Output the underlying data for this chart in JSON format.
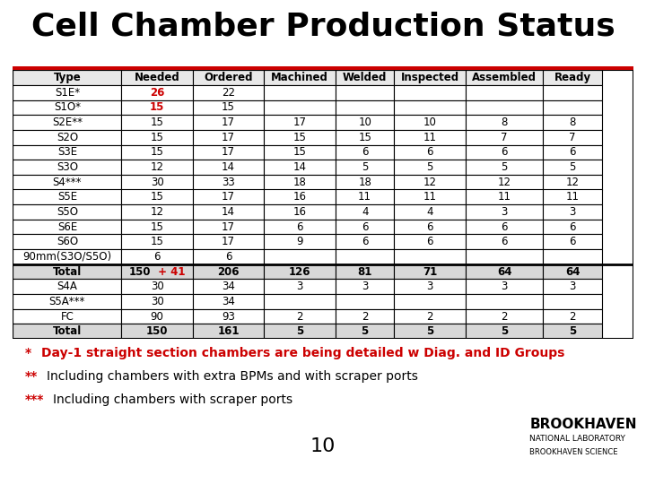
{
  "title": "Cell Chamber Production Status",
  "title_fontsize": 26,
  "title_font": "Arial Black",
  "red_line_color": "#cc0000",
  "headers": [
    "Type",
    "Needed",
    "Ordered",
    "Machined",
    "Welded",
    "Inspected",
    "Assembled",
    "Ready"
  ],
  "rows": [
    [
      "S1E*",
      "26",
      "22",
      "",
      "",
      "",
      "",
      ""
    ],
    [
      "S1O*",
      "15",
      "15",
      "",
      "",
      "",
      "",
      ""
    ],
    [
      "S2E**",
      "15",
      "17",
      "17",
      "10",
      "10",
      "8",
      "8"
    ],
    [
      "S2O",
      "15",
      "17",
      "15",
      "15",
      "11",
      "7",
      "7"
    ],
    [
      "S3E",
      "15",
      "17",
      "15",
      "6",
      "6",
      "6",
      "6"
    ],
    [
      "S3O",
      "12",
      "14",
      "14",
      "5",
      "5",
      "5",
      "5"
    ],
    [
      "S4***",
      "30",
      "33",
      "18",
      "18",
      "12",
      "12",
      "12"
    ],
    [
      "S5E",
      "15",
      "17",
      "16",
      "11",
      "11",
      "11",
      "11"
    ],
    [
      "S5O",
      "12",
      "14",
      "16",
      "4",
      "4",
      "3",
      "3"
    ],
    [
      "S6E",
      "15",
      "17",
      "6",
      "6",
      "6",
      "6",
      "6"
    ],
    [
      "S6O",
      "15",
      "17",
      "9",
      "6",
      "6",
      "6",
      "6"
    ],
    [
      "90mm(S3O/S5O)",
      "6",
      "6",
      "",
      "",
      "",
      "",
      ""
    ],
    [
      "Total",
      "150 + 41",
      "206",
      "126",
      "81",
      "71",
      "64",
      "64"
    ],
    [
      "S4A",
      "30",
      "34",
      "3",
      "3",
      "3",
      "3",
      "3"
    ],
    [
      "S5A***",
      "30",
      "34",
      "",
      "",
      "",
      "",
      ""
    ],
    [
      "FC",
      "90",
      "93",
      "2",
      "2",
      "2",
      "2",
      "2"
    ],
    [
      "Total",
      "150",
      "161",
      "5",
      "5",
      "5",
      "5",
      "5"
    ]
  ],
  "bold_rows": [
    12,
    16
  ],
  "red_needed_rows": [
    0,
    1
  ],
  "total_needed_color": "#cc0000",
  "note1_star": "*",
  "note1_text": "Day-1 straight section chambers are being detailed w Diag. and ID Groups",
  "note2_star": "**",
  "note2_text": "Including chambers with extra BPMs and with scraper ports",
  "note3_star": "***",
  "note3_text": "Including chambers with scraper ports",
  "page_number": "10",
  "bg_color": "#ffffff",
  "table_border_color": "#000000",
  "header_bg": "#e8e8e8",
  "total_row_bg": "#d8d8d8",
  "note1_color": "#cc0000",
  "note_star_color": "#cc0000",
  "separator_row": 12
}
